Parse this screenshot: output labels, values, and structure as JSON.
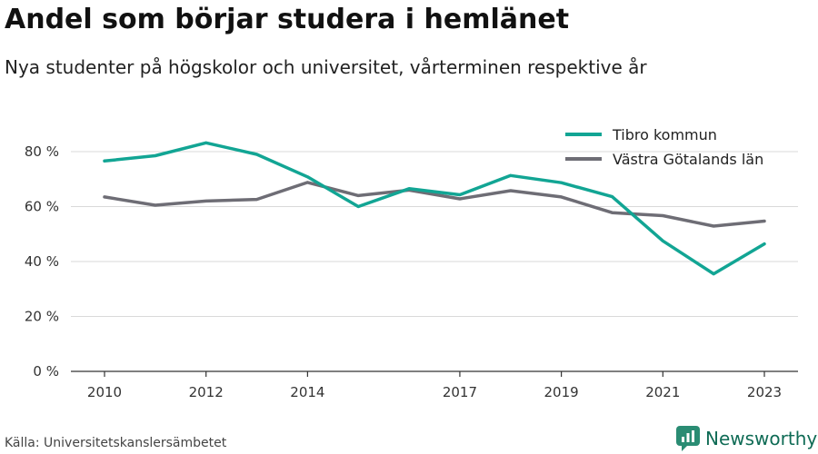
{
  "header": {
    "title": "Andel som börjar studera i hemlänet",
    "subtitle": "Nya studenter på högskolor och universitet, vårterminen respektive år"
  },
  "footer": {
    "source": "Källa: Universitetskanslersämbetet",
    "brand": "Newsworthy",
    "brand_color": "#0f6b55"
  },
  "chart_data": {
    "type": "line",
    "title": "Andel som börjar studera i hemlänet",
    "subtitle": "Nya studenter på högskolor och universitet, vårterminen respektive år",
    "xlabel": "",
    "ylabel": "",
    "x": [
      2010,
      2011,
      2012,
      2013,
      2014,
      2015,
      2016,
      2017,
      2018,
      2019,
      2020,
      2021,
      2022,
      2023
    ],
    "x_ticks": [
      2010,
      2012,
      2014,
      2017,
      2019,
      2021,
      2023
    ],
    "xlim": [
      2010,
      2023
    ],
    "ylim": [
      0,
      80
    ],
    "y_ticks": [
      0,
      20,
      40,
      60,
      80
    ],
    "y_tick_suffix": " %",
    "grid": true,
    "legend_position": "top-right",
    "series": [
      {
        "name": "Tibro kommun",
        "color": "#12a594",
        "values": [
          76.6,
          78.5,
          83.2,
          79.0,
          70.8,
          60.0,
          66.5,
          64.3,
          71.3,
          68.7,
          63.6,
          47.5,
          35.5,
          46.4
        ]
      },
      {
        "name": "Västra Götalands län",
        "color": "#6e6d75",
        "values": [
          63.5,
          60.5,
          62.0,
          62.6,
          68.8,
          64.0,
          66.0,
          62.8,
          65.8,
          63.5,
          57.8,
          56.7,
          52.9,
          54.7
        ]
      }
    ]
  }
}
